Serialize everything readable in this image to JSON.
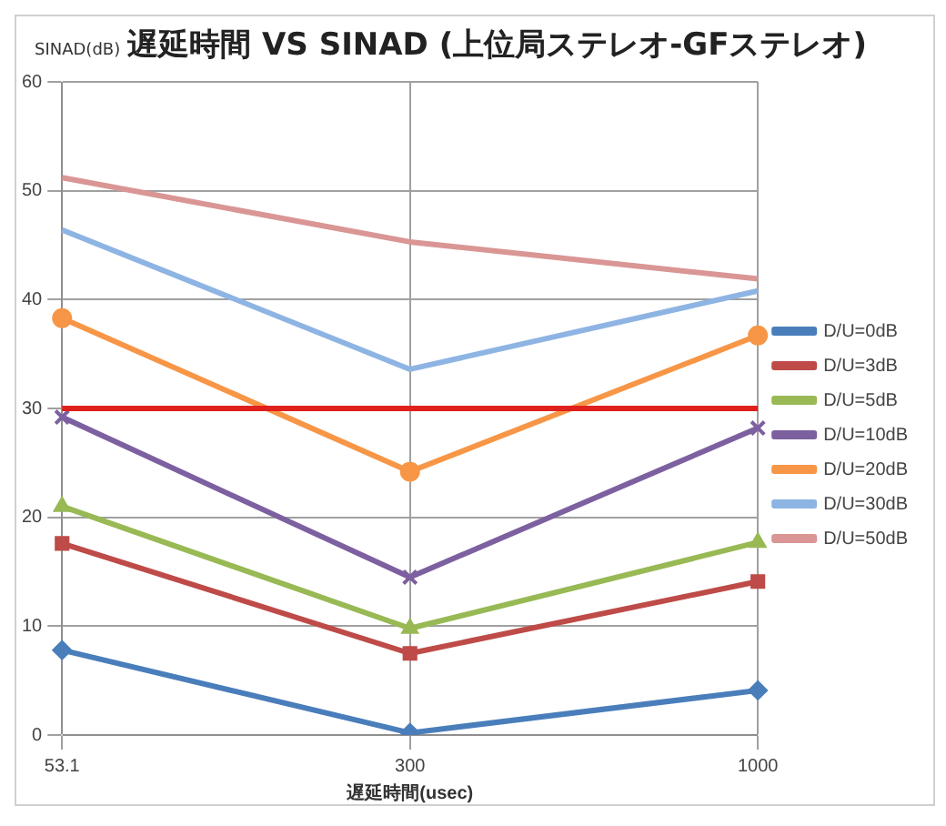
{
  "chart_data": {
    "type": "line",
    "title": "遅延時間 VS SINAD (上位局ステレオ-GFステレオ)",
    "ylabel": "SINAD(dB)",
    "xlabel": "遅延時間(usec)",
    "categories": [
      "53.1",
      "300",
      "1000"
    ],
    "series": [
      {
        "name": "D/U=0dB",
        "color": "#4a7ebb",
        "marker": "diamond",
        "values": [
          7.8,
          0.2,
          4.1
        ]
      },
      {
        "name": "D/U=3dB",
        "color": "#be4b48",
        "marker": "square",
        "values": [
          17.6,
          7.5,
          14.1
        ]
      },
      {
        "name": "D/U=5dB",
        "color": "#98b954",
        "marker": "triangle",
        "values": [
          21,
          9.8,
          17.7
        ]
      },
      {
        "name": "D/U=10dB",
        "color": "#7d60a0",
        "marker": "cross",
        "values": [
          29.2,
          14.5,
          28.2
        ]
      },
      {
        "name": "D/U=20dB",
        "color": "#f79646",
        "marker": "circle",
        "values": [
          38.3,
          24.2,
          36.7
        ]
      },
      {
        "name": "D/U=30dB",
        "color": "#8eb4e3",
        "marker": "none",
        "values": [
          46.4,
          33.6,
          40.8
        ]
      },
      {
        "name": "D/U=50dB",
        "color": "#d99694",
        "marker": "none",
        "values": [
          51.2,
          45.3,
          41.9
        ]
      }
    ],
    "ylim": [
      0,
      60
    ],
    "yticks": [
      0,
      10,
      20,
      30,
      40,
      50,
      60
    ],
    "grid": true,
    "legend": "right",
    "ref_lines": [
      {
        "axis": "y",
        "value": 30,
        "color": "#e0201c"
      }
    ]
  }
}
